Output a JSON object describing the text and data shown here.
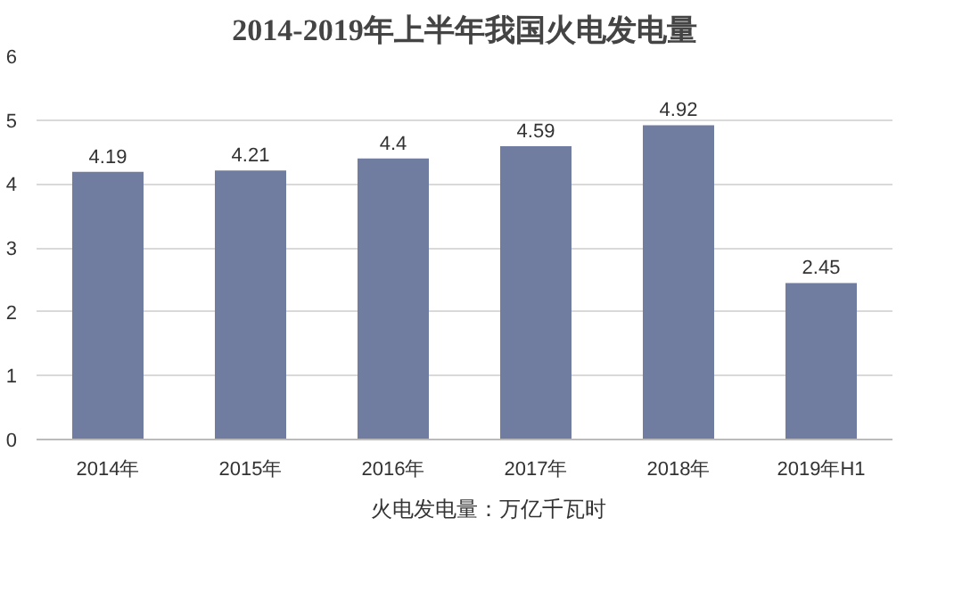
{
  "chart_data": {
    "type": "bar",
    "title": "2014-2019年上半年我国火电发电量",
    "categories": [
      "2014年",
      "2015年",
      "2016年",
      "2017年",
      "2018年",
      "2019年H1"
    ],
    "series": [
      {
        "name": "火电发电量：万亿千瓦时",
        "color": "#717da0",
        "values": [
          4.19,
          4.21,
          4.4,
          4.59,
          4.92,
          2.45
        ]
      }
    ],
    "ylim": [
      0,
      6
    ],
    "yticks": [
      0,
      1,
      2,
      3,
      4,
      5,
      6
    ],
    "grid": "y",
    "legend": "bottom",
    "data_labels": true
  }
}
